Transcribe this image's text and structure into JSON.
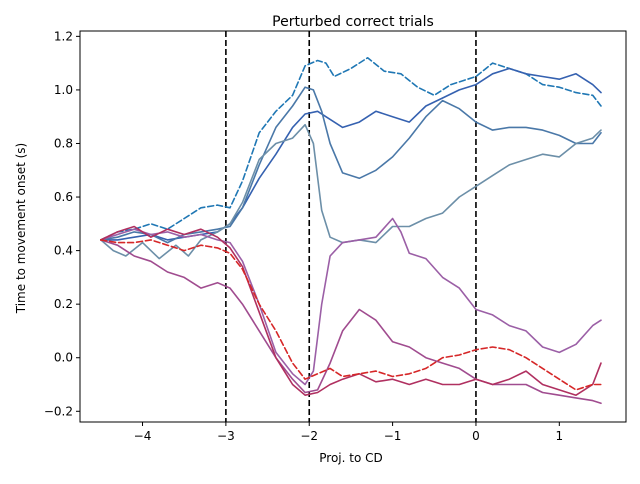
{
  "chart_data": {
    "type": "line",
    "title": "Perturbed correct trials",
    "xlabel": "Proj. to CD",
    "ylabel": "Time to movement onset (s)",
    "xlim": [
      -4.75,
      1.8
    ],
    "ylim": [
      -0.24,
      1.22
    ],
    "xticks": [
      -4,
      -3,
      -2,
      -1,
      0,
      1
    ],
    "xtick_labels": [
      "−4",
      "−3",
      "−2",
      "−1",
      "0",
      "1"
    ],
    "yticks": [
      -0.2,
      0.0,
      0.2,
      0.4,
      0.6,
      0.8,
      1.0,
      1.2
    ],
    "ytick_labels": [
      "−0.2",
      "0.0",
      "0.2",
      "0.4",
      "0.6",
      "0.8",
      "1.0",
      "1.2"
    ],
    "grid": false,
    "vlines": [
      {
        "x": -3,
        "style": "dashed",
        "color": "#000000"
      },
      {
        "x": -2,
        "style": "dashed",
        "color": "#000000"
      },
      {
        "x": 0,
        "style": "dashed",
        "color": "#000000"
      }
    ],
    "series": [
      {
        "color": "#1f77b4",
        "dashed": true,
        "x": [
          -4.5,
          -4.3,
          -4.1,
          -3.9,
          -3.7,
          -3.5,
          -3.3,
          -3.1,
          -2.95,
          -2.8,
          -2.6,
          -2.4,
          -2.2,
          -2.05,
          -1.9,
          -1.8,
          -1.7,
          -1.5,
          -1.3,
          -1.1,
          -0.9,
          -0.7,
          -0.5,
          -0.3,
          -0.1,
          0.0,
          0.2,
          0.4,
          0.6,
          0.8,
          1.0,
          1.2,
          1.4,
          1.5
        ],
        "y": [
          0.44,
          0.47,
          0.48,
          0.5,
          0.48,
          0.52,
          0.56,
          0.57,
          0.56,
          0.66,
          0.84,
          0.92,
          0.98,
          1.09,
          1.11,
          1.1,
          1.05,
          1.08,
          1.12,
          1.07,
          1.06,
          1.01,
          0.98,
          1.02,
          1.04,
          1.05,
          1.1,
          1.08,
          1.06,
          1.02,
          1.01,
          0.99,
          0.98,
          0.94
        ]
      },
      {
        "color": "#3561b0",
        "x": [
          -4.5,
          -4.3,
          -4.1,
          -3.9,
          -3.7,
          -3.5,
          -3.3,
          -3.1,
          -2.95,
          -2.8,
          -2.6,
          -2.4,
          -2.2,
          -2.05,
          -1.9,
          -1.8,
          -1.6,
          -1.4,
          -1.2,
          -1.0,
          -0.8,
          -0.6,
          -0.4,
          -0.2,
          0.0,
          0.2,
          0.4,
          0.6,
          0.8,
          1.0,
          1.2,
          1.4,
          1.5
        ],
        "y": [
          0.44,
          0.44,
          0.45,
          0.46,
          0.44,
          0.45,
          0.46,
          0.47,
          0.5,
          0.56,
          0.67,
          0.76,
          0.86,
          0.91,
          0.92,
          0.9,
          0.86,
          0.88,
          0.92,
          0.9,
          0.88,
          0.94,
          0.97,
          1.0,
          1.02,
          1.06,
          1.08,
          1.06,
          1.05,
          1.04,
          1.06,
          1.02,
          0.99
        ]
      },
      {
        "color": "#4a78a8",
        "x": [
          -4.5,
          -4.3,
          -4.1,
          -3.9,
          -3.7,
          -3.5,
          -3.3,
          -3.1,
          -2.95,
          -2.8,
          -2.6,
          -2.4,
          -2.2,
          -2.05,
          -1.95,
          -1.85,
          -1.75,
          -1.6,
          -1.4,
          -1.2,
          -1.0,
          -0.8,
          -0.6,
          -0.4,
          -0.2,
          0.0,
          0.2,
          0.4,
          0.6,
          0.8,
          1.0,
          1.2,
          1.4,
          1.5
        ],
        "y": [
          0.44,
          0.45,
          0.47,
          0.46,
          0.43,
          0.46,
          0.47,
          0.48,
          0.49,
          0.56,
          0.72,
          0.86,
          0.94,
          1.01,
          1.0,
          0.92,
          0.8,
          0.69,
          0.67,
          0.7,
          0.75,
          0.82,
          0.9,
          0.96,
          0.93,
          0.88,
          0.85,
          0.86,
          0.86,
          0.85,
          0.83,
          0.8,
          0.8,
          0.84
        ]
      },
      {
        "color": "#6c8fa8",
        "x": [
          -4.5,
          -4.35,
          -4.2,
          -4.0,
          -3.8,
          -3.6,
          -3.45,
          -3.3,
          -3.1,
          -2.95,
          -2.8,
          -2.6,
          -2.4,
          -2.2,
          -2.05,
          -1.95,
          -1.85,
          -1.75,
          -1.6,
          -1.4,
          -1.2,
          -1.0,
          -0.8,
          -0.6,
          -0.4,
          -0.2,
          0.0,
          0.2,
          0.4,
          0.6,
          0.8,
          1.0,
          1.2,
          1.4,
          1.5
        ],
        "y": [
          0.44,
          0.4,
          0.38,
          0.43,
          0.37,
          0.42,
          0.38,
          0.44,
          0.47,
          0.5,
          0.58,
          0.74,
          0.8,
          0.82,
          0.87,
          0.8,
          0.55,
          0.45,
          0.43,
          0.44,
          0.43,
          0.49,
          0.49,
          0.52,
          0.54,
          0.6,
          0.64,
          0.68,
          0.72,
          0.74,
          0.76,
          0.75,
          0.8,
          0.82,
          0.85
        ]
      },
      {
        "color": "#9b5fa6",
        "x": [
          -4.5,
          -4.3,
          -4.1,
          -3.9,
          -3.7,
          -3.5,
          -3.3,
          -3.1,
          -2.95,
          -2.8,
          -2.6,
          -2.4,
          -2.2,
          -2.05,
          -1.95,
          -1.85,
          -1.75,
          -1.6,
          -1.4,
          -1.2,
          -1.0,
          -0.9,
          -0.8,
          -0.6,
          -0.4,
          -0.2,
          0.0,
          0.2,
          0.4,
          0.6,
          0.8,
          1.0,
          1.2,
          1.4,
          1.5
        ],
        "y": [
          0.44,
          0.46,
          0.48,
          0.46,
          0.47,
          0.45,
          0.46,
          0.44,
          0.43,
          0.36,
          0.2,
          0.02,
          -0.06,
          -0.1,
          -0.05,
          0.2,
          0.38,
          0.43,
          0.44,
          0.45,
          0.52,
          0.47,
          0.39,
          0.37,
          0.3,
          0.26,
          0.18,
          0.16,
          0.12,
          0.1,
          0.04,
          0.02,
          0.05,
          0.12,
          0.14
        ]
      },
      {
        "color": "#a04c8f",
        "x": [
          -4.5,
          -4.3,
          -4.1,
          -3.9,
          -3.7,
          -3.5,
          -3.3,
          -3.1,
          -2.95,
          -2.8,
          -2.6,
          -2.4,
          -2.2,
          -2.05,
          -1.9,
          -1.75,
          -1.6,
          -1.4,
          -1.2,
          -1.0,
          -0.8,
          -0.6,
          -0.4,
          -0.2,
          0.0,
          0.2,
          0.4,
          0.6,
          0.8,
          1.0,
          1.2,
          1.4,
          1.5
        ],
        "y": [
          0.44,
          0.42,
          0.38,
          0.36,
          0.32,
          0.3,
          0.26,
          0.28,
          0.26,
          0.2,
          0.1,
          0.0,
          -0.08,
          -0.13,
          -0.12,
          -0.02,
          0.1,
          0.18,
          0.14,
          0.06,
          0.04,
          0.0,
          -0.02,
          -0.04,
          -0.08,
          -0.1,
          -0.1,
          -0.1,
          -0.13,
          -0.14,
          -0.15,
          -0.16,
          -0.17
        ]
      },
      {
        "color": "#b03060",
        "x": [
          -4.5,
          -4.3,
          -4.1,
          -3.9,
          -3.7,
          -3.5,
          -3.3,
          -3.1,
          -2.95,
          -2.8,
          -2.6,
          -2.4,
          -2.2,
          -2.05,
          -1.9,
          -1.75,
          -1.6,
          -1.4,
          -1.2,
          -1.0,
          -0.8,
          -0.6,
          -0.4,
          -0.2,
          0.0,
          0.2,
          0.4,
          0.6,
          0.8,
          1.0,
          1.2,
          1.4,
          1.5
        ],
        "y": [
          0.44,
          0.47,
          0.49,
          0.45,
          0.48,
          0.46,
          0.48,
          0.45,
          0.41,
          0.34,
          0.17,
          0.0,
          -0.1,
          -0.14,
          -0.13,
          -0.1,
          -0.08,
          -0.06,
          -0.09,
          -0.08,
          -0.1,
          -0.08,
          -0.1,
          -0.1,
          -0.08,
          -0.1,
          -0.08,
          -0.05,
          -0.1,
          -0.12,
          -0.14,
          -0.1,
          -0.02
        ]
      },
      {
        "color": "#d62728",
        "dashed": true,
        "x": [
          -4.5,
          -4.3,
          -4.1,
          -3.9,
          -3.7,
          -3.5,
          -3.3,
          -3.1,
          -2.95,
          -2.8,
          -2.6,
          -2.4,
          -2.2,
          -2.05,
          -1.9,
          -1.75,
          -1.6,
          -1.4,
          -1.2,
          -1.0,
          -0.8,
          -0.6,
          -0.4,
          -0.2,
          0.0,
          0.2,
          0.4,
          0.6,
          0.8,
          1.0,
          1.2,
          1.4,
          1.5
        ],
        "y": [
          0.44,
          0.43,
          0.43,
          0.44,
          0.42,
          0.4,
          0.42,
          0.41,
          0.39,
          0.33,
          0.2,
          0.1,
          -0.02,
          -0.08,
          -0.06,
          -0.04,
          -0.07,
          -0.06,
          -0.05,
          -0.07,
          -0.06,
          -0.04,
          0.0,
          0.01,
          0.03,
          0.04,
          0.03,
          0.0,
          -0.04,
          -0.08,
          -0.12,
          -0.1,
          -0.1
        ]
      }
    ]
  }
}
